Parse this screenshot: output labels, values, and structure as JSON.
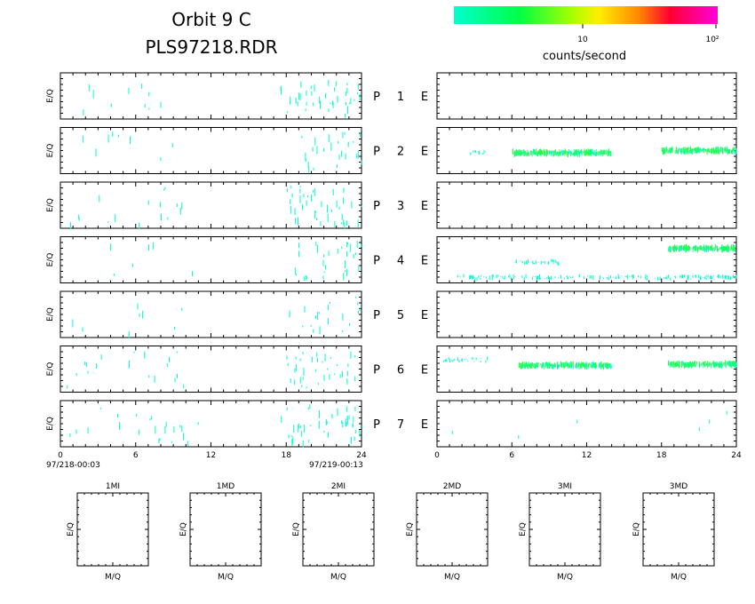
{
  "header": {
    "title_line1": "Orbit  9  C",
    "title_line2": "PLS97218.RDR"
  },
  "colorbar": {
    "tick_10": "10",
    "tick_100": "10²",
    "label": "counts/second",
    "colors": [
      "#00ffcc",
      "#00ff66",
      "#66ff00",
      "#ffff00",
      "#ff9900",
      "#ff0033",
      "#ff00cc"
    ]
  },
  "axes": {
    "ylabel": "E/Q",
    "x_ticks": [
      "0",
      "6",
      "12",
      "18",
      "24"
    ],
    "start_time": "97/218-00:03",
    "end_time": "97/219-00:13"
  },
  "rows": [
    {
      "p": "P",
      "n": "1",
      "e": "E"
    },
    {
      "p": "P",
      "n": "2",
      "e": "E"
    },
    {
      "p": "P",
      "n": "3",
      "e": "E"
    },
    {
      "p": "P",
      "n": "4",
      "e": "E"
    },
    {
      "p": "P",
      "n": "5",
      "e": "E"
    },
    {
      "p": "P",
      "n": "6",
      "e": "E"
    },
    {
      "p": "P",
      "n": "7",
      "e": "E"
    }
  ],
  "mq_panels": {
    "titles": [
      "1MI",
      "1MD",
      "2MI",
      "2MD",
      "3MI",
      "3MD"
    ],
    "xlabel": "M/Q",
    "ylabel": "E/Q"
  },
  "chart_data": {
    "type": "heatmap",
    "x_unit": "hours",
    "xlim": [
      0,
      24
    ],
    "left_panels": [
      {
        "row": 1,
        "bursts": [
          [
            0.5,
            8,
            10
          ],
          [
            17.5,
            24,
            40
          ]
        ]
      },
      {
        "row": 2,
        "bursts": [
          [
            0.5,
            11,
            8
          ],
          [
            18,
            24,
            25
          ]
        ]
      },
      {
        "row": 3,
        "bursts": [
          [
            0.5,
            11,
            16
          ],
          [
            18,
            24,
            40
          ]
        ]
      },
      {
        "row": 4,
        "bursts": [
          [
            0.5,
            11,
            6
          ],
          [
            18.5,
            24,
            30
          ]
        ]
      },
      {
        "row": 5,
        "bursts": [
          [
            0.5,
            10,
            8
          ],
          [
            18,
            24,
            20
          ]
        ]
      },
      {
        "row": 6,
        "bursts": [
          [
            0.5,
            10,
            18
          ],
          [
            18,
            24,
            35
          ]
        ]
      },
      {
        "row": 7,
        "bursts": [
          [
            0.5,
            5,
            6
          ],
          [
            6,
            11,
            16
          ],
          [
            17.5,
            24,
            45
          ]
        ]
      }
    ],
    "right_panels": [
      {
        "row": 1,
        "bands": []
      },
      {
        "row": 2,
        "bands": [
          [
            6,
            14,
            0.55,
            "green"
          ],
          [
            18,
            24,
            0.5,
            "green"
          ],
          [
            2.5,
            4,
            0.55,
            "cyan"
          ]
        ]
      },
      {
        "row": 3,
        "bands": []
      },
      {
        "row": 4,
        "bands": [
          [
            18.5,
            24,
            0.25,
            "green"
          ],
          [
            1.5,
            24,
            0.88,
            "cyan"
          ],
          [
            6,
            10,
            0.55,
            "cyan"
          ]
        ]
      },
      {
        "row": 5,
        "bands": []
      },
      {
        "row": 6,
        "bands": [
          [
            6.5,
            14,
            0.42,
            "green"
          ],
          [
            18.5,
            24,
            0.4,
            "green"
          ],
          [
            0.5,
            4,
            0.3,
            "cyan"
          ]
        ]
      },
      {
        "row": 7,
        "bands": []
      }
    ],
    "right_scatter": [
      {
        "row": 7,
        "x": [
          1.2,
          6.5,
          11.2,
          21.0,
          21.8,
          23.2
        ]
      }
    ]
  }
}
